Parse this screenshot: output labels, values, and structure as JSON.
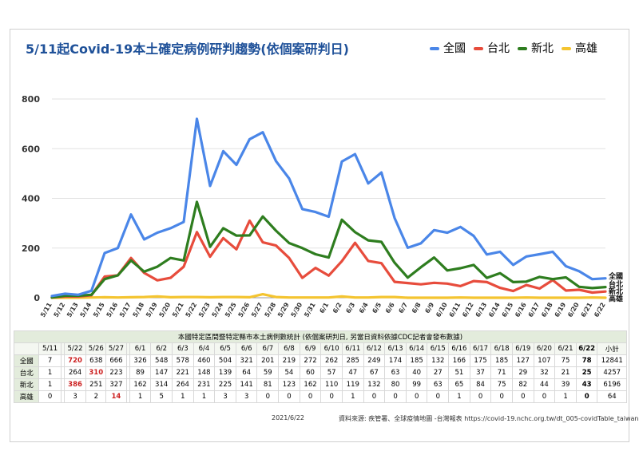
{
  "title": "5/11起Covid-19本土確定病例研判趨勢(依個案研判日)",
  "footer": {
    "date": "2021/6/22",
    "source": "資料來源: 疾管署、全球疫情地圖 -台灣報表 https://covid-19.nchc.org.tw/dt_005-covidTable_taiwan.php"
  },
  "table": {
    "caption": "本國特定區間暨特定縣市本土病例數統計 (依個案研判日, 另當日資料依據CDC記者會發布數據)",
    "columns": [
      "",
      "5/11",
      "",
      "5/22",
      "5/26",
      "5/27",
      "",
      "6/1",
      "6/2",
      "6/3",
      "6/4",
      "6/5",
      "6/6",
      "6/7",
      "6/8",
      "6/9",
      "6/10",
      "6/11",
      "6/12",
      "6/13",
      "6/14",
      "6/15",
      "6/16",
      "6/17",
      "6/18",
      "6/19",
      "6/20",
      "6/21",
      "6/22",
      "小計"
    ],
    "rows": [
      [
        "全國",
        "7",
        "",
        "720",
        "638",
        "666",
        "",
        "326",
        "548",
        "578",
        "460",
        "504",
        "321",
        "201",
        "219",
        "272",
        "262",
        "285",
        "249",
        "174",
        "185",
        "132",
        "166",
        "175",
        "185",
        "127",
        "107",
        "75",
        "78",
        "12841"
      ],
      [
        "台北",
        "1",
        "",
        "264",
        "310",
        "223",
        "",
        "89",
        "147",
        "221",
        "148",
        "139",
        "64",
        "59",
        "54",
        "60",
        "57",
        "47",
        "67",
        "63",
        "40",
        "27",
        "51",
        "37",
        "71",
        "29",
        "32",
        "21",
        "25",
        "4257"
      ],
      [
        "新北",
        "1",
        "",
        "386",
        "251",
        "327",
        "",
        "162",
        "314",
        "264",
        "231",
        "225",
        "141",
        "81",
        "123",
        "162",
        "110",
        "119",
        "132",
        "80",
        "99",
        "63",
        "65",
        "84",
        "75",
        "82",
        "44",
        "39",
        "43",
        "6196"
      ],
      [
        "高雄",
        "0",
        "",
        "3",
        "2",
        "14",
        "",
        "1",
        "5",
        "1",
        "1",
        "3",
        "3",
        "0",
        "0",
        "0",
        "0",
        "1",
        "0",
        "0",
        "0",
        "0",
        "1",
        "0",
        "0",
        "0",
        "0",
        "1",
        "0",
        "64"
      ]
    ]
  },
  "chart_data": {
    "type": "line",
    "title": "5/11起Covid-19本土確定病例研判趨勢(依個案研判日)",
    "xlabel": "",
    "ylabel": "",
    "ylim": [
      0,
      800
    ],
    "yticks": [
      0,
      200,
      400,
      600,
      800
    ],
    "grid": true,
    "legend_position": "top-right",
    "x": [
      "5/11",
      "5/12",
      "5/13",
      "5/14",
      "5/15",
      "5/16",
      "5/17",
      "5/18",
      "5/19",
      "5/20",
      "5/21",
      "5/22",
      "5/23",
      "5/24",
      "5/25",
      "5/26",
      "5/27",
      "5/28",
      "5/29",
      "5/30",
      "5/31",
      "6/1",
      "6/2",
      "6/3",
      "6/4",
      "6/5",
      "6/6",
      "6/7",
      "6/8",
      "6/9",
      "6/10",
      "6/11",
      "6/12",
      "6/13",
      "6/14",
      "6/15",
      "6/16",
      "6/17",
      "6/18",
      "6/19",
      "6/20",
      "6/21",
      "6/22"
    ],
    "series": [
      {
        "name": "全國",
        "color": "#4a86e8",
        "end_label": "全國",
        "values": [
          7,
          16,
          12,
          28,
          180,
          200,
          335,
          235,
          262,
          280,
          305,
          720,
          450,
          590,
          535,
          638,
          666,
          550,
          480,
          357,
          345,
          326,
          548,
          578,
          460,
          504,
          321,
          201,
          219,
          272,
          262,
          285,
          249,
          174,
          185,
          132,
          166,
          175,
          185,
          127,
          107,
          75,
          78
        ]
      },
      {
        "name": "台北",
        "color": "#e74c3c",
        "end_label": "台北",
        "values": [
          1,
          5,
          5,
          10,
          85,
          90,
          160,
          100,
          70,
          80,
          125,
          264,
          165,
          240,
          195,
          310,
          223,
          210,
          160,
          80,
          120,
          89,
          147,
          221,
          148,
          139,
          64,
          59,
          54,
          60,
          57,
          47,
          67,
          63,
          40,
          27,
          51,
          37,
          71,
          29,
          32,
          21,
          25
        ]
      },
      {
        "name": "新北",
        "color": "#2e7d1f",
        "end_label": "新北",
        "values": [
          1,
          8,
          8,
          12,
          75,
          90,
          150,
          105,
          125,
          160,
          150,
          386,
          205,
          280,
          250,
          251,
          327,
          270,
          220,
          200,
          175,
          162,
          314,
          264,
          231,
          225,
          141,
          81,
          123,
          162,
          110,
          119,
          132,
          80,
          99,
          63,
          65,
          84,
          75,
          82,
          44,
          39,
          43
        ]
      },
      {
        "name": "高雄",
        "color": "#f4c430",
        "end_label": "高雄",
        "values": [
          0,
          0,
          0,
          1,
          2,
          1,
          2,
          3,
          5,
          2,
          3,
          3,
          2,
          3,
          3,
          2,
          14,
          3,
          1,
          1,
          1,
          1,
          5,
          1,
          1,
          3,
          3,
          0,
          0,
          0,
          0,
          1,
          0,
          0,
          0,
          0,
          1,
          0,
          0,
          0,
          0,
          1,
          0
        ]
      }
    ]
  }
}
